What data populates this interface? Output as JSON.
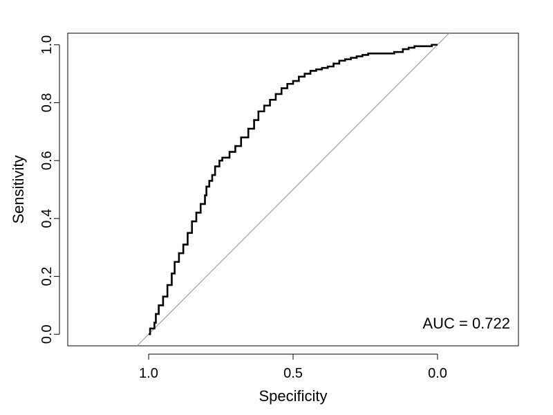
{
  "chart_data": {
    "type": "line",
    "xlabel": "Specificity",
    "ylabel": "Sensitivity",
    "xlim": [
      1.28,
      -0.28
    ],
    "ylim": [
      -0.04,
      1.04
    ],
    "x_axis_reversed": true,
    "x_ticks": [
      1.0,
      0.5,
      0.0
    ],
    "x_tick_labels": [
      "1.0",
      "0.5",
      "0.0"
    ],
    "y_ticks": [
      0.0,
      0.2,
      0.4,
      0.6,
      0.8,
      1.0
    ],
    "y_tick_labels": [
      "0.0",
      "0.2",
      "0.4",
      "0.6",
      "0.8",
      "1.0"
    ],
    "grid": false,
    "annotation": "AUC = 0.722",
    "colors": {
      "roc": "#000000",
      "reference": "#a0a0a0"
    },
    "reference_line": {
      "x": [
        1.0,
        0.0
      ],
      "y": [
        0.0,
        1.0
      ]
    },
    "series": [
      {
        "specificity": [
          1.0,
          0.995,
          0.98,
          0.975,
          0.965,
          0.95,
          0.935,
          0.92,
          0.91,
          0.895,
          0.88,
          0.865,
          0.85,
          0.835,
          0.82,
          0.805,
          0.8,
          0.79,
          0.78,
          0.77,
          0.755,
          0.745,
          0.72,
          0.7,
          0.68,
          0.655,
          0.635,
          0.62,
          0.6,
          0.58,
          0.56,
          0.54,
          0.52,
          0.5,
          0.48,
          0.46,
          0.44,
          0.42,
          0.4,
          0.38,
          0.36,
          0.34,
          0.32,
          0.3,
          0.28,
          0.26,
          0.24,
          0.22,
          0.2,
          0.18,
          0.15,
          0.12,
          0.1,
          0.08,
          0.05,
          0.02,
          0.0
        ],
        "sensitivity": [
          0.0,
          0.02,
          0.04,
          0.07,
          0.1,
          0.13,
          0.17,
          0.21,
          0.25,
          0.28,
          0.31,
          0.35,
          0.39,
          0.42,
          0.45,
          0.48,
          0.51,
          0.53,
          0.55,
          0.58,
          0.6,
          0.61,
          0.63,
          0.65,
          0.68,
          0.71,
          0.74,
          0.77,
          0.79,
          0.81,
          0.83,
          0.85,
          0.865,
          0.875,
          0.89,
          0.9,
          0.91,
          0.915,
          0.92,
          0.925,
          0.935,
          0.945,
          0.95,
          0.955,
          0.96,
          0.965,
          0.97,
          0.97,
          0.97,
          0.97,
          0.975,
          0.985,
          0.99,
          0.995,
          0.995,
          1.0,
          1.0
        ]
      }
    ]
  }
}
